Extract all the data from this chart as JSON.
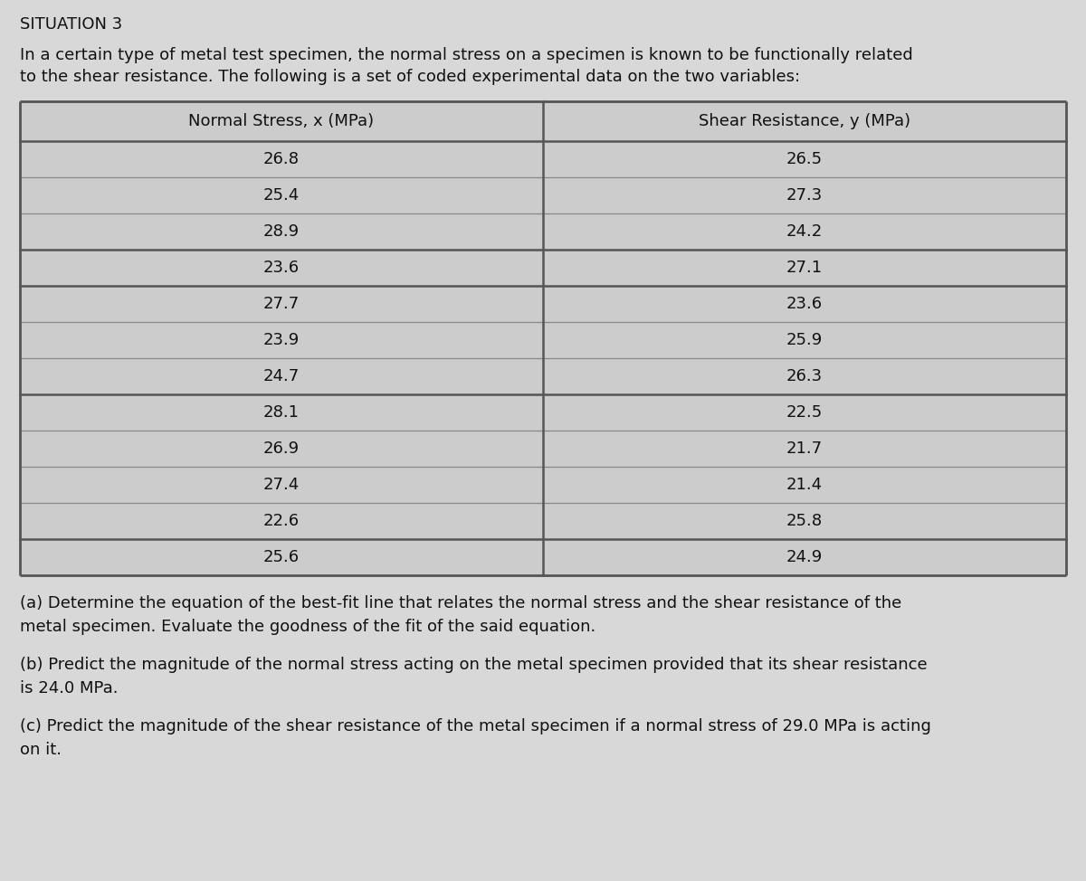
{
  "title": "SITUATION 3",
  "intro_line1": "In a certain type of metal test specimen, the normal stress on a specimen is known to be functionally related",
  "intro_line2": "to the shear resistance. The following is a set of coded experimental data on the two variables:",
  "col1_header": "Normal Stress, x (MPa)",
  "col2_header": "Shear Resistance, y (MPa)",
  "x_values": [
    26.8,
    25.4,
    28.9,
    23.6,
    27.7,
    23.9,
    24.7,
    28.1,
    26.9,
    27.4,
    22.6,
    25.6
  ],
  "y_values": [
    26.5,
    27.3,
    24.2,
    27.1,
    23.6,
    25.9,
    26.3,
    22.5,
    21.7,
    21.4,
    25.8,
    24.9
  ],
  "part_a_line1": "(a) Determine the equation of the best-fit line that relates the normal stress and the shear resistance of the",
  "part_a_line2": "metal specimen. Evaluate the goodness of the fit of the said equation.",
  "part_b_line1": "(b) Predict the magnitude of the normal stress acting on the metal specimen provided that its shear resistance",
  "part_b_line2": "is 24.0 MPa.",
  "part_c_line1": "(c) Predict the magnitude of the shear resistance of the metal specimen if a normal stress of 29.0 MPa is acting",
  "part_c_line2": "on it.",
  "bg_color": "#d8d8d8",
  "text_color": "#111111",
  "thick_after_rows": [
    2,
    3,
    6,
    10
  ],
  "title_fontsize": 13,
  "intro_fontsize": 13,
  "header_fontsize": 13,
  "body_fontsize": 13,
  "parts_fontsize": 13
}
